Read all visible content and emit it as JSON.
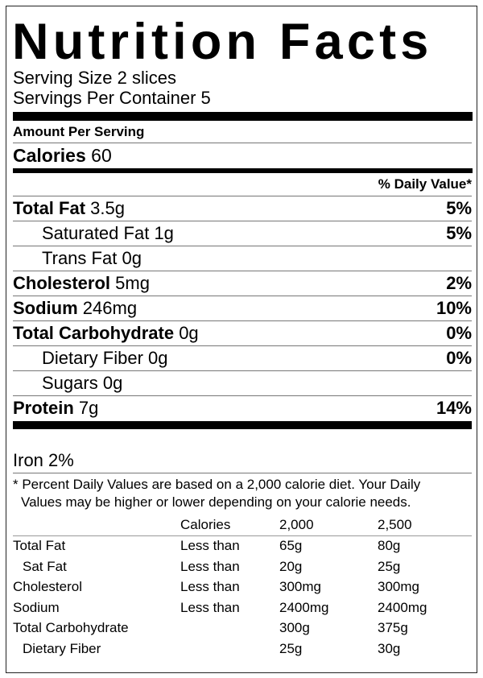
{
  "title": "Nutrition Facts",
  "serving_size": "Serving Size 2 slices",
  "servings_per_container": "Servings Per Container 5",
  "amount_per_serving": "Amount Per Serving",
  "calories": {
    "label": "Calories",
    "value": "60"
  },
  "daily_value_header": "% Daily Value*",
  "nutrients": [
    {
      "label": "Total Fat",
      "amount": "3.5g",
      "dv": "5%",
      "bold": true,
      "indent": false
    },
    {
      "label": "Saturated Fat",
      "amount": "1g",
      "dv": "5%",
      "bold": false,
      "indent": true
    },
    {
      "label": "Trans Fat",
      "amount": "0g",
      "dv": "",
      "bold": false,
      "indent": true
    },
    {
      "label": "Cholesterol",
      "amount": "5mg",
      "dv": "2%",
      "bold": true,
      "indent": false
    },
    {
      "label": "Sodium",
      "amount": "246mg",
      "dv": "10%",
      "bold": true,
      "indent": false
    },
    {
      "label": "Total Carbohydrate",
      "amount": "0g",
      "dv": "0%",
      "bold": true,
      "indent": false
    },
    {
      "label": "Dietary Fiber",
      "amount": "0g",
      "dv": "0%",
      "bold": false,
      "indent": true
    },
    {
      "label": "Sugars",
      "amount": "0g",
      "dv": "",
      "bold": false,
      "indent": true
    },
    {
      "label": "Protein",
      "amount": "7g",
      "dv": "14%",
      "bold": true,
      "indent": false
    }
  ],
  "iron": "Iron 2%",
  "footnote": {
    "line1": "* Percent Daily Values are based on a 2,000 calorie diet. Your Daily",
    "line2": "Values may be higher or lower depending on your calorie needs."
  },
  "table": {
    "header": [
      "",
      "Calories",
      "2,000",
      "2,500"
    ],
    "rows": [
      [
        "Total Fat",
        "Less than",
        "65g",
        "80g"
      ],
      [
        "  Sat Fat",
        "Less than",
        "20g",
        "25g"
      ],
      [
        "Cholesterol",
        "Less than",
        "300mg",
        "300mg"
      ],
      [
        "Sodium",
        "Less than",
        "2400mg",
        "2400mg"
      ],
      [
        "Total Carbohydrate",
        "",
        "300g",
        "375g"
      ],
      [
        "  Dietary Fiber",
        "",
        "25g",
        "30g"
      ]
    ]
  }
}
